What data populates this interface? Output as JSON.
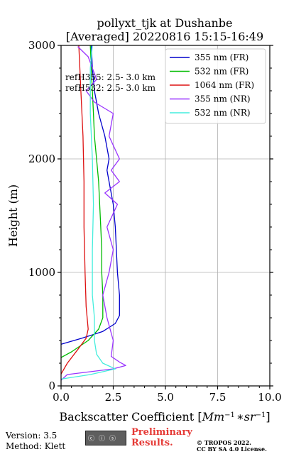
{
  "chart_data": {
    "type": "line",
    "title_line1": "pollyxt_tjk at Dushanbe",
    "title_line2": "[Averaged] 20220816 15:15-16:49",
    "xlabel": "Backscatter Coefficient [Mm^{-1}*sr^{-1}]",
    "xlabel_text": "Backscatter Coefficient [",
    "xlabel_units": "Mm",
    "xlabel_sup1": "−1",
    "xlabel_mult": "∗",
    "xlabel_sr": "sr",
    "xlabel_sup2": "−1",
    "xlabel_close": "]",
    "ylabel": "Height (m)",
    "xlim": [
      0,
      10
    ],
    "ylim": [
      0,
      3000
    ],
    "xticks": [
      0,
      2.5,
      5,
      7.5,
      10
    ],
    "xtick_labels": [
      "0.0",
      "2.5",
      "5.0",
      "7.5",
      "10.0"
    ],
    "yticks": [
      0,
      1000,
      2000,
      3000
    ],
    "ytick_labels": [
      "0",
      "1000",
      "2000",
      "3000"
    ],
    "grid": true,
    "legend_position": "top-right",
    "annotations": [
      "refH355:  2.5- 3.0 km",
      "refH532:  2.5- 3.0 km"
    ],
    "series": [
      {
        "name": "355 nm (FR)",
        "color": "#0000cc",
        "points": [
          [
            -0.5,
            340
          ],
          [
            1.0,
            420
          ],
          [
            2.0,
            480
          ],
          [
            2.6,
            550
          ],
          [
            2.8,
            620
          ],
          [
            2.8,
            800
          ],
          [
            2.7,
            1000
          ],
          [
            2.65,
            1200
          ],
          [
            2.6,
            1400
          ],
          [
            2.5,
            1600
          ],
          [
            2.3,
            1800
          ],
          [
            2.2,
            1900
          ],
          [
            2.3,
            2000
          ],
          [
            2.1,
            2200
          ],
          [
            1.8,
            2400
          ],
          [
            1.6,
            2600
          ],
          [
            1.5,
            2800
          ],
          [
            1.45,
            3000
          ]
        ]
      },
      {
        "name": "532 nm (FR)",
        "color": "#00bb00",
        "points": [
          [
            -0.5,
            200
          ],
          [
            0.5,
            300
          ],
          [
            1.3,
            400
          ],
          [
            1.8,
            500
          ],
          [
            2.0,
            600
          ],
          [
            2.0,
            800
          ],
          [
            1.95,
            1000
          ],
          [
            1.95,
            1200
          ],
          [
            1.9,
            1400
          ],
          [
            1.85,
            1600
          ],
          [
            1.8,
            1800
          ],
          [
            1.7,
            2000
          ],
          [
            1.6,
            2200
          ],
          [
            1.55,
            2400
          ],
          [
            1.5,
            2600
          ],
          [
            1.45,
            2800
          ],
          [
            1.4,
            3000
          ]
        ]
      },
      {
        "name": "1064 nm (FR)",
        "color": "#dd1111",
        "points": [
          [
            -0.2,
            40
          ],
          [
            0.3,
            200
          ],
          [
            0.8,
            320
          ],
          [
            1.2,
            420
          ],
          [
            1.3,
            500
          ],
          [
            1.2,
            700
          ],
          [
            1.15,
            1000
          ],
          [
            1.1,
            1400
          ],
          [
            1.1,
            1800
          ],
          [
            1.05,
            2200
          ],
          [
            0.95,
            2600
          ],
          [
            0.85,
            3000
          ]
        ]
      },
      {
        "name": "355 nm (NR)",
        "color": "#9933ff",
        "points": [
          [
            0.0,
            50
          ],
          [
            0.3,
            100
          ],
          [
            2.5,
            150
          ],
          [
            3.1,
            180
          ],
          [
            2.8,
            210
          ],
          [
            2.4,
            260
          ],
          [
            2.5,
            400
          ],
          [
            2.2,
            600
          ],
          [
            2.0,
            800
          ],
          [
            2.3,
            1000
          ],
          [
            2.5,
            1200
          ],
          [
            2.2,
            1400
          ],
          [
            2.7,
            1600
          ],
          [
            2.1,
            1700
          ],
          [
            2.8,
            1800
          ],
          [
            2.4,
            1900
          ],
          [
            2.8,
            2000
          ],
          [
            2.3,
            2200
          ],
          [
            2.5,
            2400
          ],
          [
            1.6,
            2500
          ],
          [
            1.2,
            2600
          ],
          [
            1.7,
            2700
          ],
          [
            1.5,
            2800
          ],
          [
            1.3,
            2900
          ],
          [
            0.8,
            2990
          ]
        ]
      },
      {
        "name": "532 nm (NR)",
        "color": "#44eedd",
        "points": [
          [
            0.0,
            60
          ],
          [
            1.4,
            100
          ],
          [
            2.6,
            150
          ],
          [
            2.0,
            200
          ],
          [
            1.7,
            280
          ],
          [
            1.6,
            400
          ],
          [
            1.6,
            600
          ],
          [
            1.5,
            800
          ],
          [
            1.5,
            1200
          ],
          [
            1.55,
            1600
          ],
          [
            1.5,
            2000
          ],
          [
            1.4,
            2400
          ],
          [
            1.4,
            2800
          ],
          [
            1.5,
            3000
          ]
        ]
      }
    ]
  },
  "footer": {
    "version": "Version: 3.5",
    "method": "Method: Klett",
    "preliminary": "Preliminary Results.",
    "copyright_line1": "© TROPOS 2022.",
    "copyright_line2": "CC BY SA 4.0 License."
  },
  "colors": {
    "grid": "#b0b0b0",
    "preliminary": "#e53935"
  }
}
